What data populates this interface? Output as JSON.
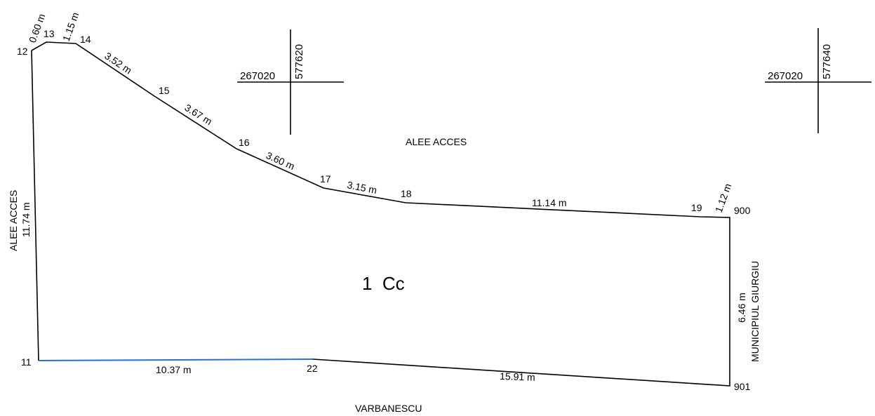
{
  "colors": {
    "boundary": "#000000",
    "south_edge": "#2b6fd6",
    "label": "#000000"
  },
  "points": [
    {
      "id": "pt-11",
      "label": "11"
    },
    {
      "id": "pt-12",
      "label": "12"
    },
    {
      "id": "pt-13",
      "label": "13"
    },
    {
      "id": "pt-14",
      "label": "14"
    },
    {
      "id": "pt-15",
      "label": "15"
    },
    {
      "id": "pt-16",
      "label": "16"
    },
    {
      "id": "pt-17",
      "label": "17"
    },
    {
      "id": "pt-18",
      "label": "18"
    },
    {
      "id": "pt-19",
      "label": "19"
    },
    {
      "id": "pt-900",
      "label": "900"
    },
    {
      "id": "pt-901",
      "label": "901"
    },
    {
      "id": "pt-22",
      "label": "22"
    }
  ],
  "dimensions": [
    {
      "id": "dim-12-13",
      "label": "0.60 m"
    },
    {
      "id": "dim-13-14",
      "label": "1.15 m"
    },
    {
      "id": "dim-14-15",
      "label": "3.52 m"
    },
    {
      "id": "dim-15-16",
      "label": "3.67 m"
    },
    {
      "id": "dim-16-17",
      "label": "3.60 m"
    },
    {
      "id": "dim-17-18",
      "label": "3.15 m"
    },
    {
      "id": "dim-18-19",
      "label": "11.14 m"
    },
    {
      "id": "dim-19-900",
      "label": "1.12 m"
    },
    {
      "id": "dim-900-901",
      "label": "6.46 m"
    },
    {
      "id": "dim-22-901",
      "label": "15.91 m"
    },
    {
      "id": "dim-11-22",
      "label": "10.37 m"
    },
    {
      "id": "dim-11-12",
      "label": "11.74 m"
    }
  ],
  "neighbors": {
    "north": "ALEE ACCES",
    "west": "ALEE ACCES",
    "east": "MUNICIPIUL GIURGIU",
    "south": "VARBANESCU"
  },
  "parcel_label": "1  Cc",
  "grid_marks": [
    {
      "id": "grid-1",
      "x_label": "267020",
      "y_label": "577620"
    },
    {
      "id": "grid-2",
      "x_label": "267020",
      "y_label": "577640"
    }
  ]
}
